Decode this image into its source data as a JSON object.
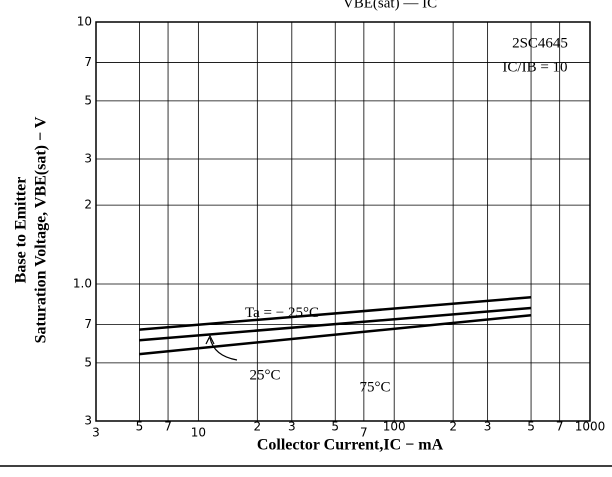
{
  "chart_data": {
    "type": "line",
    "title": "VBE(sat) — IC",
    "xlabel": "Collector Current,IC − mA",
    "ylabel": [
      "Base to Emitter",
      "Saturation Voltage, VBE(sat) − V"
    ],
    "annotations": [
      "2SC4645",
      "IC/IB = 10"
    ],
    "log_x": true,
    "log_y": true,
    "grid": true,
    "x": [
      5,
      500
    ],
    "series": [
      {
        "name": "Ta = − 25°C",
        "color": "#000000",
        "values": [
          0.67,
          0.89
        ]
      },
      {
        "name": "25°C",
        "color": "#000000",
        "values": [
          0.61,
          0.81
        ]
      },
      {
        "name": "75°C",
        "color": "#000000",
        "values": [
          0.54,
          0.76
        ]
      }
    ],
    "xlim": [
      3,
      1000
    ],
    "xticks": [
      3,
      5,
      7,
      10,
      {
        "value": 20,
        "label": "2"
      },
      {
        "value": 30,
        "label": "3"
      },
      {
        "value": 50,
        "label": "5"
      },
      {
        "value": 70,
        "label": "7"
      },
      100,
      {
        "value": 200,
        "label": "2"
      },
      {
        "value": 300,
        "label": "3"
      },
      {
        "value": 500,
        "label": "5"
      },
      {
        "value": 700,
        "label": "7"
      },
      1000
    ],
    "ylim": [
      0.3,
      10
    ],
    "yticks": [
      {
        "value": 0.3,
        "label": "3"
      },
      {
        "value": 0.5,
        "label": "5"
      },
      {
        "value": 0.7,
        "label": "7"
      },
      {
        "value": 1,
        "label": "1.0"
      },
      2,
      3,
      5,
      7,
      10
    ]
  }
}
